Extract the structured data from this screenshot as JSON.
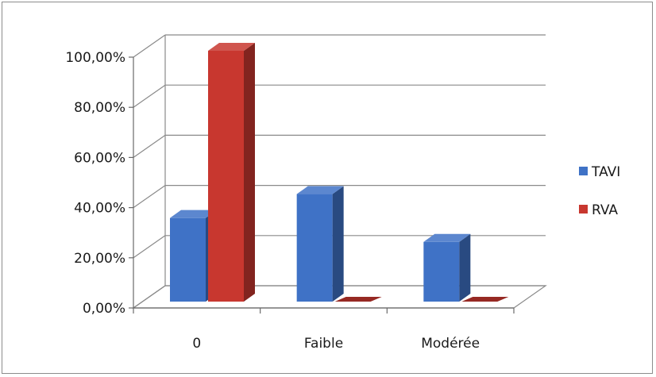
{
  "chart_data": {
    "type": "bar",
    "categories": [
      "0",
      "Faible",
      "Modérée"
    ],
    "series": [
      {
        "name": "TAVI",
        "values": [
          33.33,
          42.86,
          23.81
        ],
        "color": "#3f72c6"
      },
      {
        "name": "RVA",
        "values": [
          100.0,
          0.0,
          0.0
        ],
        "color": "#c8372f"
      }
    ],
    "ylim": [
      0,
      100
    ],
    "yticks": [
      "0,00%",
      "20,00%",
      "40,00%",
      "60,00%",
      "80,00%",
      "100,00%"
    ],
    "grid": true,
    "legend_position": "right",
    "style": "3d-clustered-column"
  }
}
